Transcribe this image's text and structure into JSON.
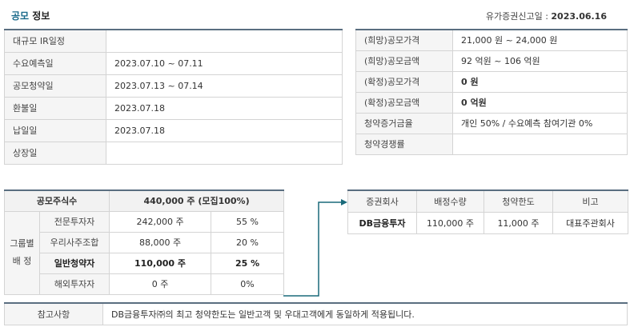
{
  "header": {
    "title_accent": "공모",
    "title_rest": " 정보",
    "filing_label": "유가증권신고일 : ",
    "filing_date": "2023.06.16"
  },
  "schedule": [
    {
      "label": "대규모 IR일정",
      "value": ""
    },
    {
      "label": "수요예측일",
      "value": "2023.07.10 ~ 07.11"
    },
    {
      "label": "공모청약일",
      "value": "2023.07.13 ~ 07.14"
    },
    {
      "label": "환불일",
      "value": "2023.07.18"
    },
    {
      "label": "납일일",
      "value": "2023.07.18"
    },
    {
      "label": "상장일",
      "value": ""
    }
  ],
  "price": [
    {
      "label": "(희망)공모가격",
      "value": "21,000 원 ~ 24,000 원"
    },
    {
      "label": "(희망)공모금액",
      "value": "92 억원  ~ 106 억원"
    },
    {
      "label": "(확정)공모가격",
      "value": "0 원"
    },
    {
      "label": "(확정)공모금액",
      "value": "0 억원"
    },
    {
      "label": "청약증거금율",
      "value": "개인 50% / 수요예측 참여기관 0%"
    },
    {
      "label": "청약경쟁률",
      "value": ""
    }
  ],
  "shares": {
    "total_label": "공모주식수",
    "total_value": "440,000 주 (모집100%)",
    "group_label_1": "그룹별",
    "group_label_2": "배 정",
    "rows": [
      {
        "name": "전문투자자",
        "qty": "242,000 주",
        "pct": "55 %"
      },
      {
        "name": "우리사주조합",
        "qty": "88,000 주",
        "pct": "20 %"
      },
      {
        "name": "일반청약자",
        "qty": "110,000 주",
        "pct": "25 %"
      },
      {
        "name": "해외투자자",
        "qty": "0 주",
        "pct": "0%"
      }
    ]
  },
  "broker": {
    "headers": [
      "증권회사",
      "배정수량",
      "청약한도",
      "비고"
    ],
    "row": {
      "name": "DB금융투자",
      "qty": "110,000 주",
      "limit": "11,000 주",
      "note": "대표주관회사"
    }
  },
  "note": {
    "label": "참고사항",
    "text": "DB금융투자㈜의 최고 청약한도는 일반고객 및 우대고객에게 동일하게 적용됩니다."
  },
  "colors": {
    "accent": "#1a6a8a",
    "arrow": "#1a6a7a",
    "confirmed": "#c0392b"
  }
}
